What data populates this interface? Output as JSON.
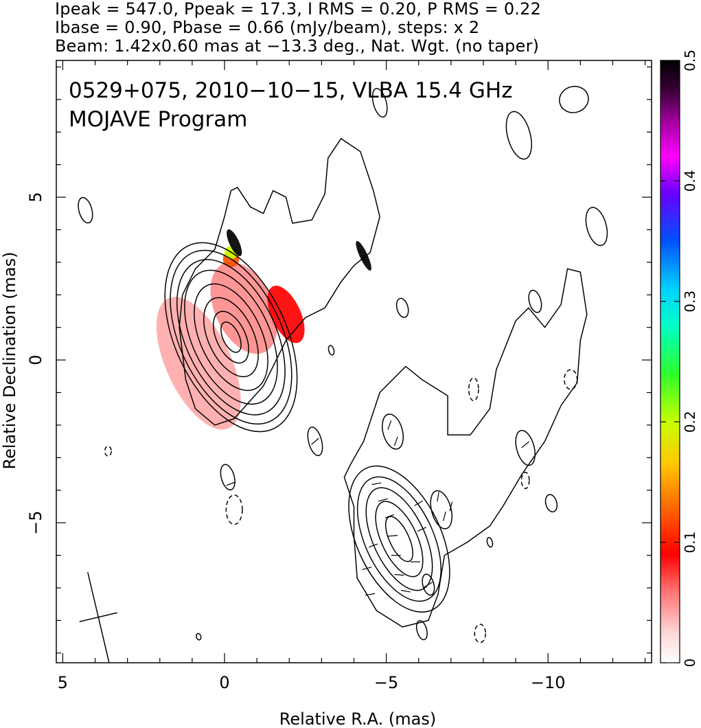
{
  "header": {
    "line1": "Ipeak = 547.0, Ppeak = 17.3, I RMS = 0.20, P RMS = 0.22",
    "line2": "Ibase = 0.90, Pbase = 0.66 (mJy/beam), steps: x 2",
    "line3": "Beam: 1.42x0.60 mas at −13.3 deg., Nat. Wgt. (no taper)"
  },
  "chart_data": {
    "type": "contour",
    "title": "0529+075, 2010−10−15, VLBA 15.4 GHz",
    "subtitle": "MOJAVE Program",
    "xlabel": "Relative R.A. (mas)",
    "ylabel": "Relative Declination (mas)",
    "xlim": [
      5.2,
      -13.2
    ],
    "ylim": [
      -9.3,
      9.2
    ],
    "xticks": [
      5,
      0,
      -5,
      -10
    ],
    "xtick_labels": [
      "5",
      "0",
      "−5",
      "−10"
    ],
    "yticks": [
      5,
      0,
      -5
    ],
    "ytick_labels": [
      "5",
      "0",
      "−5"
    ],
    "colorbar": {
      "range": [
        0,
        0.5
      ],
      "ticks": [
        0,
        0.1,
        0.2,
        0.3,
        0.4,
        0.5
      ],
      "tick_labels": [
        "0",
        "0.1",
        "0.2",
        "0.3",
        "0.4",
        "0.5"
      ]
    },
    "beam": {
      "major_mas": 1.42,
      "minor_mas": 0.6,
      "pa_deg": -13.3
    },
    "peak_intensity_mJy_per_beam": 547.0,
    "peak_polarization_mJy_per_beam": 17.3,
    "i_rms": 0.2,
    "p_rms": 0.22,
    "i_base": 0.9,
    "p_base": 0.66,
    "contour_step_factor": 2,
    "core": {
      "x": -0.2,
      "y": 0.7,
      "contours": [
        {
          "rx": 0.25,
          "ry": 0.5
        },
        {
          "rx": 0.45,
          "ry": 0.85
        },
        {
          "rx": 0.7,
          "ry": 1.3
        },
        {
          "rx": 0.95,
          "ry": 1.75
        },
        {
          "rx": 1.2,
          "ry": 2.2
        },
        {
          "rx": 1.4,
          "ry": 2.55
        },
        {
          "rx": 1.58,
          "ry": 2.85
        },
        {
          "rx": 1.72,
          "ry": 3.1
        }
      ]
    },
    "secondary_blob": {
      "x": -5.4,
      "y": -5.5,
      "contours": [
        {
          "rx": 0.3,
          "ry": 0.75
        },
        {
          "rx": 0.55,
          "ry": 1.25
        },
        {
          "rx": 0.8,
          "ry": 1.7
        },
        {
          "rx": 1.05,
          "ry": 2.05
        },
        {
          "rx": 1.3,
          "ry": 2.4
        }
      ]
    },
    "outer_contour_upper": [
      [
        1.3,
        2.0
      ],
      [
        1.4,
        1.0
      ],
      [
        1.2,
        -0.6
      ],
      [
        0.9,
        -1.5
      ],
      [
        0.3,
        -2.0
      ],
      [
        -0.3,
        -1.8
      ],
      [
        -1.2,
        -0.8
      ],
      [
        -1.9,
        0.6
      ],
      [
        -2.5,
        1.3
      ],
      [
        -3.1,
        1.6
      ],
      [
        -3.6,
        2.4
      ],
      [
        -4.0,
        2.9
      ],
      [
        -4.5,
        3.3
      ],
      [
        -4.8,
        4.4
      ],
      [
        -4.6,
        5.2
      ],
      [
        -4.2,
        6.4
      ],
      [
        -3.6,
        6.8
      ],
      [
        -3.2,
        6.2
      ],
      [
        -3.1,
        5.1
      ],
      [
        -2.7,
        4.3
      ],
      [
        -2.1,
        4.2
      ],
      [
        -1.9,
        5.0
      ],
      [
        -1.5,
        5.2
      ],
      [
        -1.2,
        4.5
      ],
      [
        -0.8,
        4.7
      ],
      [
        -0.4,
        5.3
      ],
      [
        -0.2,
        5.2
      ],
      [
        0.0,
        4.4
      ],
      [
        0.3,
        3.4
      ],
      [
        0.9,
        2.8
      ]
    ],
    "outer_contour_lower": [
      [
        -3.7,
        -3.6
      ],
      [
        -4.0,
        -4.5
      ],
      [
        -4.0,
        -5.4
      ],
      [
        -4.1,
        -6.7
      ],
      [
        -4.7,
        -7.7
      ],
      [
        -5.5,
        -8.2
      ],
      [
        -6.3,
        -8.0
      ],
      [
        -6.6,
        -7.2
      ],
      [
        -6.8,
        -6.0
      ],
      [
        -7.5,
        -5.6
      ],
      [
        -8.2,
        -5.1
      ],
      [
        -8.6,
        -4.5
      ],
      [
        -9.2,
        -3.5
      ],
      [
        -9.9,
        -2.5
      ],
      [
        -10.4,
        -1.4
      ],
      [
        -10.9,
        -0.7
      ],
      [
        -11.0,
        0.6
      ],
      [
        -11.2,
        1.4
      ],
      [
        -11.0,
        2.7
      ],
      [
        -10.6,
        2.8
      ],
      [
        -10.4,
        1.7
      ],
      [
        -9.9,
        1.0
      ],
      [
        -9.4,
        1.6
      ],
      [
        -9.0,
        1.2
      ],
      [
        -8.4,
        -0.3
      ],
      [
        -8.2,
        -1.5
      ],
      [
        -7.6,
        -2.3
      ],
      [
        -6.9,
        -2.3
      ],
      [
        -6.9,
        -1.1
      ],
      [
        -6.1,
        -0.6
      ],
      [
        -5.6,
        -0.2
      ],
      [
        -4.8,
        -1.0
      ],
      [
        -4.3,
        -2.5
      ],
      [
        -3.9,
        -3.2
      ]
    ],
    "islands": [
      {
        "x": 4.3,
        "y": 4.6,
        "rx": 0.2,
        "ry": 0.4
      },
      {
        "x": -4.8,
        "y": 7.9,
        "rx": 0.2,
        "ry": 0.45
      },
      {
        "x": -9.1,
        "y": 6.9,
        "rx": 0.35,
        "ry": 0.75
      },
      {
        "x": -10.8,
        "y": 8.0,
        "rx": 0.45,
        "ry": 0.4
      },
      {
        "x": -11.5,
        "y": 4.1,
        "rx": 0.3,
        "ry": 0.6
      },
      {
        "x": -9.6,
        "y": 1.8,
        "rx": 0.18,
        "ry": 0.35
      },
      {
        "x": -5.5,
        "y": 1.6,
        "rx": 0.17,
        "ry": 0.3
      },
      {
        "x": -3.3,
        "y": 0.3,
        "rx": 0.08,
        "ry": 0.15
      },
      {
        "x": -10.1,
        "y": -4.4,
        "rx": 0.17,
        "ry": 0.27
      },
      {
        "x": -8.2,
        "y": -5.6,
        "rx": 0.08,
        "ry": 0.15
      },
      {
        "x": -6.3,
        "y": -6.9,
        "rx": 0.17,
        "ry": 0.33
      },
      {
        "x": -6.1,
        "y": -8.3,
        "rx": 0.15,
        "ry": 0.3
      },
      {
        "x": 0.8,
        "y": -8.5,
        "rx": 0.07,
        "ry": 0.1
      },
      {
        "x": -2.8,
        "y": -2.5,
        "rx": 0.2,
        "ry": 0.45
      },
      {
        "x": -5.2,
        "y": -2.2,
        "rx": 0.3,
        "ry": 0.55
      },
      {
        "x": -9.3,
        "y": -2.7,
        "rx": 0.27,
        "ry": 0.55
      },
      {
        "x": -6.7,
        "y": -4.6,
        "rx": 0.3,
        "ry": 0.6
      },
      {
        "x": -0.1,
        "y": -3.6,
        "rx": 0.2,
        "ry": 0.4
      }
    ],
    "negative_contours": [
      {
        "x": -0.3,
        "y": -4.6,
        "rx": 0.25,
        "ry": 0.45
      },
      {
        "x": -10.7,
        "y": -0.6,
        "rx": 0.2,
        "ry": 0.3
      },
      {
        "x": -7.9,
        "y": -8.4,
        "rx": 0.17,
        "ry": 0.28
      },
      {
        "x": 3.6,
        "y": -2.8,
        "rx": 0.1,
        "ry": 0.15
      },
      {
        "x": -7.7,
        "y": -0.9,
        "rx": 0.15,
        "ry": 0.35
      },
      {
        "x": -9.3,
        "y": -3.7,
        "rx": 0.12,
        "ry": 0.25
      }
    ],
    "polarization_fraction_regions": [
      {
        "x": 0.8,
        "y": -0.1,
        "rx": 1.0,
        "ry": 2.2,
        "frac": 0.04
      },
      {
        "x": -0.6,
        "y": 1.6,
        "rx": 0.9,
        "ry": 1.5,
        "frac": 0.05
      },
      {
        "x": -1.9,
        "y": 1.4,
        "rx": 0.45,
        "ry": 0.95,
        "frac": 0.09
      },
      {
        "x": -0.2,
        "y": 3.1,
        "rx": 0.25,
        "ry": 0.25,
        "frac": 0.12
      },
      {
        "x": -0.2,
        "y": 3.3,
        "rx": 0.2,
        "ry": 0.2,
        "frac": 0.2
      },
      {
        "x": -0.3,
        "y": 3.6,
        "rx": 0.15,
        "ry": 0.45,
        "frac": 0.5
      },
      {
        "x": -4.3,
        "y": 3.2,
        "rx": 0.12,
        "ry": 0.5,
        "frac": 0.5
      }
    ],
    "evpa_vectors": [
      {
        "x": -4.7,
        "y": -3.8,
        "angle": 80
      },
      {
        "x": -4.9,
        "y": -4.3,
        "angle": 75
      },
      {
        "x": -5.1,
        "y": -4.8,
        "angle": 70
      },
      {
        "x": -5.2,
        "y": -5.4,
        "angle": 85
      },
      {
        "x": -5.3,
        "y": -6.0,
        "angle": 90
      },
      {
        "x": -5.4,
        "y": -6.6,
        "angle": 95
      },
      {
        "x": -5.6,
        "y": -7.1,
        "angle": 100
      },
      {
        "x": -4.6,
        "y": -5.7,
        "angle": 70
      },
      {
        "x": -4.4,
        "y": -6.4,
        "angle": 75
      },
      {
        "x": -4.5,
        "y": -7.2,
        "angle": 80
      },
      {
        "x": -6.0,
        "y": -4.4,
        "angle": 60
      },
      {
        "x": -6.1,
        "y": -5.2,
        "angle": 65
      },
      {
        "x": -5.9,
        "y": -6.2,
        "angle": 90
      },
      {
        "x": -6.6,
        "y": -4.2,
        "angle": 10
      },
      {
        "x": -6.8,
        "y": -4.8,
        "angle": 15
      },
      {
        "x": -7.0,
        "y": -4.5,
        "angle": 15
      },
      {
        "x": -5.1,
        "y": -2.0,
        "angle": 20
      },
      {
        "x": -5.3,
        "y": -2.5,
        "angle": 20
      },
      {
        "x": -2.8,
        "y": -2.5,
        "angle": 50
      },
      {
        "x": -9.3,
        "y": -2.6,
        "angle": 50
      },
      {
        "x": -6.3,
        "y": -6.9,
        "angle": 60
      },
      {
        "x": -0.2,
        "y": -3.8,
        "angle": 70
      }
    ]
  }
}
